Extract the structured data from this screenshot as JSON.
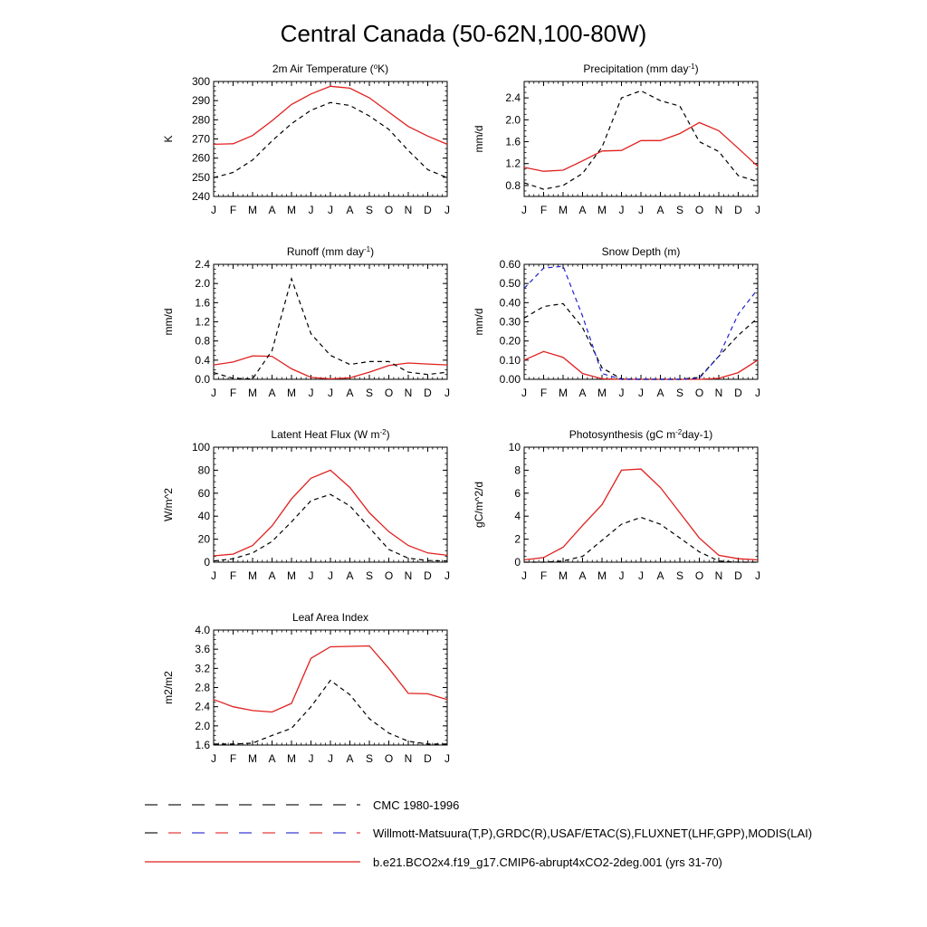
{
  "title": "Central Canada (50-62N,100-80W)",
  "months": [
    "J",
    "F",
    "M",
    "A",
    "M",
    "J",
    "J",
    "A",
    "S",
    "O",
    "N",
    "D",
    "J"
  ],
  "colors": {
    "model": "#e0201e",
    "obs_black": "#000000",
    "obs_blue": "#1f1fcf"
  },
  "legend": [
    {
      "label": "CMC 1980-1996",
      "style": "dash-black"
    },
    {
      "label": "Willmott-Matsuura(T,P),GRDC(R),USAF/ETAC(S),FLUXNET(LHF,GPP),MODIS(LAI)",
      "style": "dash-mixed"
    },
    {
      "label": "b.e21.BCO2x4.f19_g17.CMIP6-abrupt4xCO2-2deg.001 (yrs 31-70)",
      "style": "solid-red"
    }
  ],
  "chart_data": [
    {
      "type": "line",
      "title": "2m Air Temperature (°K)",
      "ylabel": "K",
      "ylim": [
        240,
        300
      ],
      "yticks": [
        "240",
        "250",
        "260",
        "270",
        "280",
        "290",
        "300"
      ],
      "series": [
        {
          "name": "model",
          "style": "solid-red",
          "values": [
            267.2,
            267.5,
            271.8,
            279.5,
            288.0,
            293.5,
            297.5,
            296.5,
            291.5,
            284.0,
            276.5,
            271.5,
            267.2
          ]
        },
        {
          "name": "CMC 1980-1996",
          "style": "dash-black",
          "values": [
            249.8,
            252.5,
            259.0,
            269.0,
            278.0,
            285.0,
            289.0,
            287.5,
            282.0,
            275.0,
            264.0,
            254.0,
            249.8
          ]
        }
      ]
    },
    {
      "type": "line",
      "title": "Precipitation (mm day-1)",
      "ylabel": "mm/d",
      "ylim": [
        0.6,
        2.7
      ],
      "yticks": [
        "0.8",
        "1.2",
        "1.6",
        "2.0",
        "2.4"
      ],
      "series": [
        {
          "name": "model",
          "style": "solid-red",
          "values": [
            1.13,
            1.06,
            1.08,
            1.25,
            1.43,
            1.44,
            1.62,
            1.62,
            1.75,
            1.95,
            1.8,
            1.48,
            1.15
          ]
        },
        {
          "name": "Willmott-Matsuura",
          "style": "dash-black",
          "values": [
            0.85,
            0.73,
            0.8,
            1.02,
            1.5,
            2.4,
            2.53,
            2.35,
            2.25,
            1.6,
            1.42,
            0.98,
            0.87
          ]
        }
      ]
    },
    {
      "type": "line",
      "title": "Runoff (mm day-1)",
      "ylabel": "mm/d",
      "ylim": [
        0,
        2.4
      ],
      "yticks": [
        "0.0",
        "0.4",
        "0.8",
        "1.2",
        "1.6",
        "2.0",
        "2.4"
      ],
      "series": [
        {
          "name": "model",
          "style": "solid-red",
          "values": [
            0.3,
            0.36,
            0.49,
            0.48,
            0.22,
            0.04,
            0.01,
            0.03,
            0.15,
            0.29,
            0.34,
            0.32,
            0.3
          ]
        },
        {
          "name": "GRDC",
          "style": "dash-black",
          "values": [
            0.14,
            0.02,
            0.01,
            0.6,
            2.1,
            0.95,
            0.5,
            0.31,
            0.37,
            0.37,
            0.15,
            0.1,
            0.15
          ]
        }
      ]
    },
    {
      "type": "line",
      "title": "Snow Depth (m)",
      "ylabel": "mm/d",
      "ylim": [
        0,
        0.6
      ],
      "yticks": [
        "0.00",
        "0.10",
        "0.20",
        "0.30",
        "0.40",
        "0.50",
        "0.60"
      ],
      "series": [
        {
          "name": "model",
          "style": "solid-red",
          "values": [
            0.1,
            0.145,
            0.115,
            0.03,
            0.003,
            0.0,
            0.0,
            0.0,
            0.0,
            0.0,
            0.005,
            0.035,
            0.1
          ]
        },
        {
          "name": "CMC 1980-1996",
          "style": "dash-black",
          "values": [
            0.32,
            0.38,
            0.395,
            0.27,
            0.06,
            0.002,
            0.0,
            0.0,
            0.0,
            0.01,
            0.12,
            0.23,
            0.32
          ]
        },
        {
          "name": "USAF/ETAC",
          "style": "dash-blue",
          "values": [
            0.475,
            0.58,
            0.59,
            0.33,
            0.03,
            0.0,
            0.0,
            0.0,
            0.0,
            0.005,
            0.12,
            0.34,
            0.47
          ]
        }
      ]
    },
    {
      "type": "line",
      "title": "Latent Heat Flux (W m-2)",
      "ylabel": "W/m^2",
      "ylim": [
        0,
        100
      ],
      "yticks": [
        "0",
        "20",
        "40",
        "60",
        "80",
        "100"
      ],
      "series": [
        {
          "name": "model",
          "style": "solid-red",
          "values": [
            5.5,
            7.0,
            14.5,
            31.5,
            55.0,
            73.0,
            80.0,
            65.0,
            43.0,
            26.5,
            14.5,
            8.0,
            6.0
          ]
        },
        {
          "name": "FLUXNET",
          "style": "dash-black",
          "values": [
            1.0,
            3.0,
            8.0,
            18.0,
            35.0,
            53.5,
            59.0,
            49.0,
            30.0,
            11.0,
            3.5,
            1.5,
            1.0
          ]
        }
      ]
    },
    {
      "type": "line",
      "title": "Photosynthesis (gC m-2day-1)",
      "ylabel": "gC/m^2/d",
      "ylim": [
        0,
        10
      ],
      "yticks": [
        "0",
        "2",
        "4",
        "6",
        "8",
        "10"
      ],
      "series": [
        {
          "name": "model",
          "style": "solid-red",
          "values": [
            0.2,
            0.4,
            1.3,
            3.2,
            5.0,
            8.0,
            8.1,
            6.5,
            4.3,
            2.1,
            0.6,
            0.3,
            0.2
          ]
        },
        {
          "name": "FLUXNET",
          "style": "dash-black",
          "values": [
            0.0,
            0.0,
            0.1,
            0.5,
            1.9,
            3.3,
            3.9,
            3.3,
            2.1,
            0.9,
            0.1,
            0.0,
            0.0
          ]
        }
      ]
    },
    {
      "type": "line",
      "title": "Leaf Area Index",
      "ylabel": "m2/m2",
      "ylim": [
        1.6,
        4.0
      ],
      "yticks": [
        "1.6",
        "2.0",
        "2.4",
        "2.8",
        "3.2",
        "3.6",
        "4.0"
      ],
      "series": [
        {
          "name": "model",
          "style": "solid-red",
          "values": [
            2.55,
            2.4,
            2.32,
            2.29,
            2.47,
            3.41,
            3.65,
            3.66,
            3.67,
            3.2,
            2.68,
            2.67,
            2.55
          ]
        },
        {
          "name": "MODIS",
          "style": "dash-black",
          "values": [
            1.62,
            1.62,
            1.64,
            1.8,
            1.95,
            2.4,
            2.95,
            2.65,
            2.15,
            1.85,
            1.68,
            1.62,
            1.62
          ]
        }
      ]
    }
  ]
}
